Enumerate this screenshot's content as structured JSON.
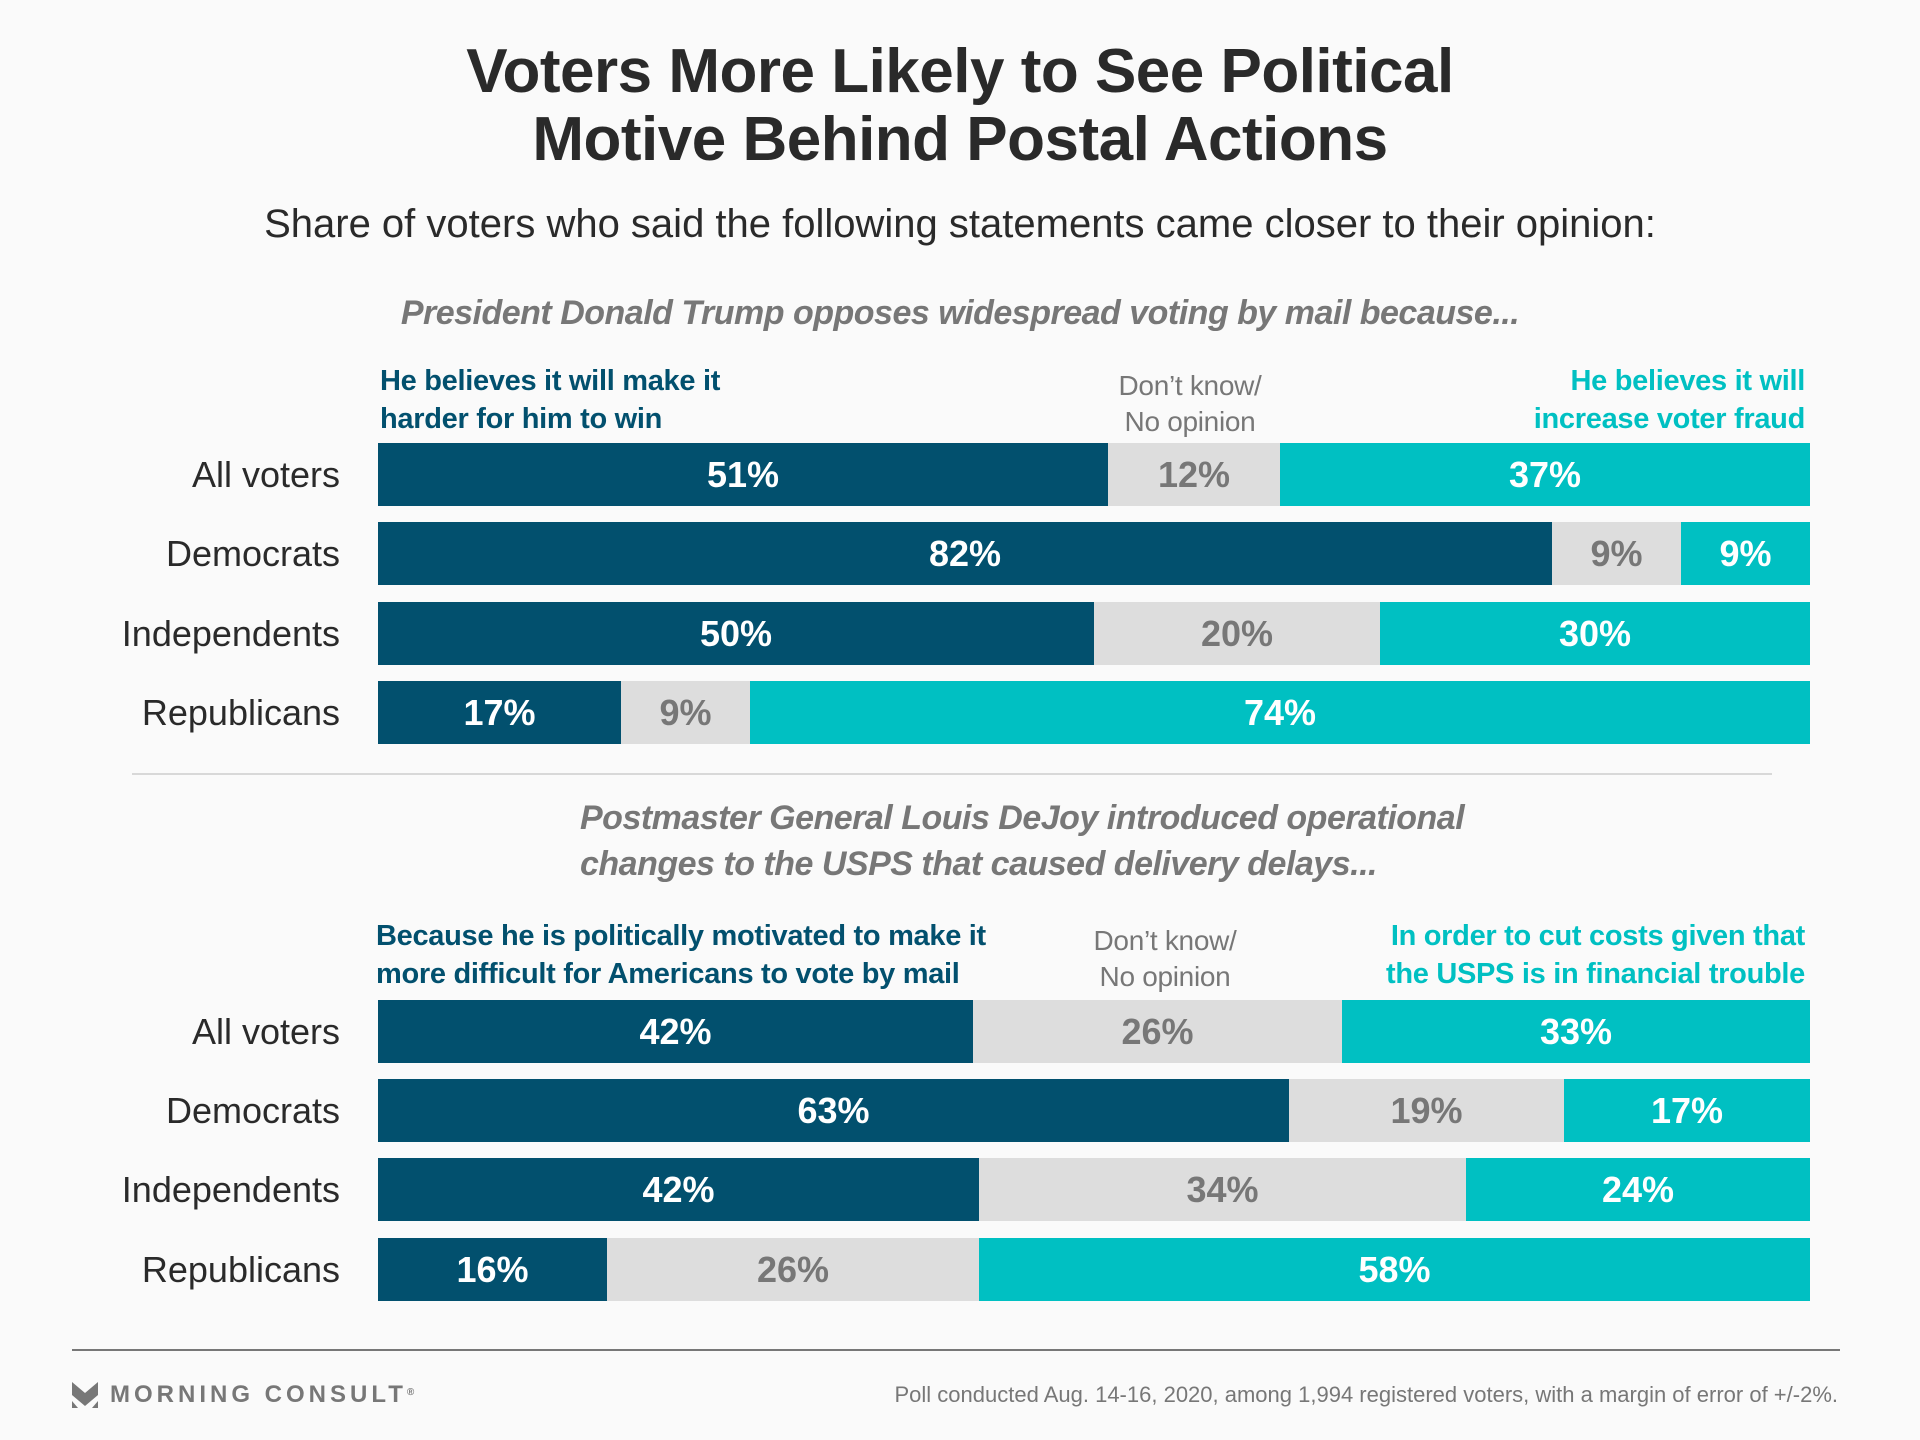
{
  "header": {
    "title_line1": "Voters More Likely to See Political",
    "title_line2": "Motive Behind Postal Actions",
    "subtitle": "Share of voters who said the following statements came closer to their opinion:"
  },
  "colors": {
    "political": "#02506e",
    "dont_know": "#dddddd",
    "other": "#00c0c2",
    "label_gray": "#777777"
  },
  "chart_data": [
    {
      "type": "bar",
      "orientation": "horizontal",
      "stacked": true,
      "title": "President Donald Trump opposes widespread voting by mail because...",
      "categories": [
        "All voters",
        "Democrats",
        "Independents",
        "Republicans"
      ],
      "series": [
        {
          "name_line1": "He believes it will make it",
          "name_line2": "harder for him to win",
          "name": "He believes it will make it harder for him to win",
          "values": [
            51,
            82,
            50,
            17
          ]
        },
        {
          "name_line1": "Don’t know/",
          "name_line2": "No opinion",
          "name": "Don’t know/No opinion",
          "values": [
            12,
            9,
            20,
            9
          ]
        },
        {
          "name_line1": "He believes it will",
          "name_line2": "increase voter fraud",
          "name": "He believes it will increase voter fraud",
          "values": [
            37,
            9,
            30,
            74
          ]
        }
      ],
      "value_suffix": "%",
      "xlim": [
        0,
        100
      ],
      "legend": "top",
      "grid": false
    },
    {
      "type": "bar",
      "orientation": "horizontal",
      "stacked": true,
      "title_line1": "Postmaster General Louis DeJoy introduced operational",
      "title_line2": "changes to the USPS that caused delivery delays...",
      "title": "Postmaster General Louis DeJoy introduced operational changes to the USPS that caused delivery delays...",
      "categories": [
        "All voters",
        "Democrats",
        "Independents",
        "Republicans"
      ],
      "series": [
        {
          "name_line1": "Because he is politically motivated to make it",
          "name_line2": "more difficult for Americans to vote by mail",
          "name": "Because he is politically motivated to make it more difficult for Americans to vote by mail",
          "values": [
            42,
            63,
            42,
            16
          ]
        },
        {
          "name_line1": "Don’t know/",
          "name_line2": "No opinion",
          "name": "Don’t know/No opinion",
          "values": [
            26,
            19,
            34,
            26
          ]
        },
        {
          "name_line1": "In order to cut costs given that",
          "name_line2": "the USPS is in financial trouble",
          "name": "In order to cut costs given that the USPS is in financial trouble",
          "values": [
            33,
            17,
            24,
            58
          ]
        }
      ],
      "value_suffix": "%",
      "xlim": [
        0,
        101
      ],
      "legend": "top",
      "grid": false
    }
  ],
  "footer": {
    "brand": "MORNING CONSULT",
    "brand_mark": "®",
    "note": "Poll conducted Aug. 14-16, 2020, among 1,994 registered voters, with a margin of error of +/-2%."
  }
}
